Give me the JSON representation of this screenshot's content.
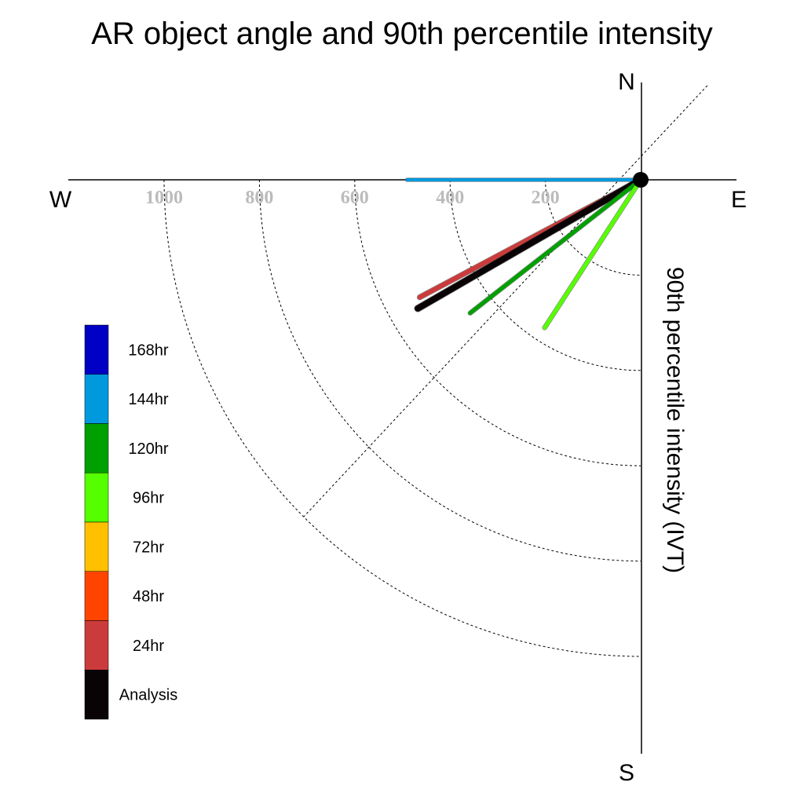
{
  "chart_data": {
    "type": "polar-vector",
    "title": "AR object angle and 90th percentile intensity",
    "radial_label": "90th percentile intensity (IVT)",
    "compass": {
      "north": "N",
      "south": "S",
      "east": "E",
      "west": "W"
    },
    "radial_ticks": [
      200,
      400,
      600,
      800,
      1000
    ],
    "radial_max": 1200,
    "angle_units": "degrees clockwise from north",
    "series": [
      {
        "name": "144hr",
        "color": "#0099dd",
        "angle": 270,
        "intensity": 490,
        "width": 4
      },
      {
        "name": "72hr",
        "color": "#ffc000",
        "angle": 240,
        "intensity": 480,
        "width": 4
      },
      {
        "name": "24hr",
        "color": "#cc3b3b",
        "angle": 242,
        "intensity": 525,
        "width": 6
      },
      {
        "name": "Analysis",
        "color": "#0a0306",
        "angle": 240,
        "intensity": 540,
        "width": 8
      },
      {
        "name": "120hr",
        "color": "#00a000",
        "angle": 232,
        "intensity": 454,
        "width": 5
      },
      {
        "name": "96hr",
        "color": "#55ff00",
        "angle": 213,
        "intensity": 370,
        "width": 5
      }
    ],
    "legend": [
      {
        "label": "168hr",
        "color": "#0000c4"
      },
      {
        "label": "144hr",
        "color": "#0099dd"
      },
      {
        "label": "120hr",
        "color": "#00a000"
      },
      {
        "label": "96hr",
        "color": "#55ff00"
      },
      {
        "label": "72hr",
        "color": "#ffc000"
      },
      {
        "label": "48hr",
        "color": "#ff4400"
      },
      {
        "label": "24hr",
        "color": "#cc3b3b"
      },
      {
        "label": "Analysis",
        "color": "#0a0306"
      }
    ]
  }
}
